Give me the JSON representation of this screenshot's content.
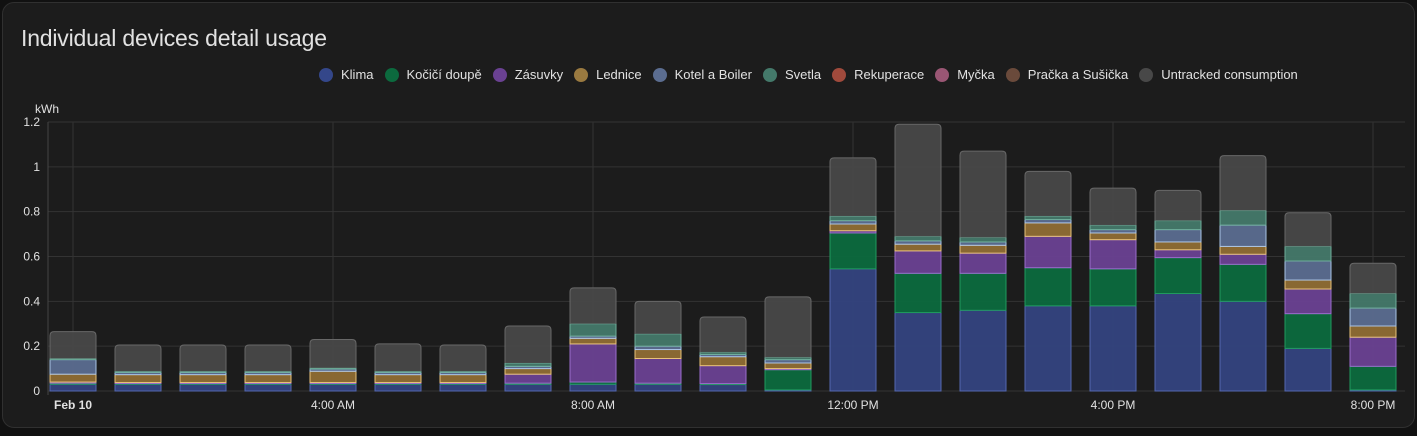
{
  "card": {
    "title": "Individual devices detail usage"
  },
  "chart_data": {
    "type": "bar",
    "stacked": true,
    "title": "Individual devices detail usage",
    "ylabel": "kWh",
    "xlabel": "",
    "ylim": [
      0,
      1.2
    ],
    "yticks": [
      "0",
      "0.2",
      "0.4",
      "0.6",
      "0.8",
      "1",
      "1.2"
    ],
    "ytick_values": [
      0,
      0.2,
      0.4,
      0.6,
      0.8,
      1.0,
      1.2
    ],
    "xtick_labels": [
      {
        "index": 0,
        "label": "Feb 10",
        "bold": true
      },
      {
        "index": 4,
        "label": "4:00 AM"
      },
      {
        "index": 8,
        "label": "8:00 AM"
      },
      {
        "index": 12,
        "label": "12:00 PM"
      },
      {
        "index": 16,
        "label": "4:00 PM"
      },
      {
        "index": 20,
        "label": "8:00 PM"
      }
    ],
    "categories": [
      "00:00",
      "01:00",
      "02:00",
      "03:00",
      "04:00",
      "05:00",
      "06:00",
      "07:00",
      "08:00",
      "09:00",
      "10:00",
      "11:00",
      "12:00",
      "13:00",
      "14:00",
      "15:00",
      "16:00",
      "17:00",
      "18:00",
      "19:00",
      "20:00"
    ],
    "legend_position": "top-center",
    "grid": true,
    "series": [
      {
        "name": "Klima",
        "color": "#34437f",
        "stroke": "#5468b0",
        "values": [
          0.03,
          0.03,
          0.03,
          0.03,
          0.03,
          0.03,
          0.03,
          0.03,
          0.03,
          0.03,
          0.03,
          0.005,
          0.545,
          0.35,
          0.36,
          0.38,
          0.38,
          0.435,
          0.4,
          0.19,
          0.005
        ]
      },
      {
        "name": "Kočičí doupě",
        "color": "#0c6a3e",
        "stroke": "#1f9a5e",
        "values": [
          0.005,
          0.005,
          0.005,
          0.005,
          0.005,
          0.005,
          0.005,
          0.005,
          0.01,
          0.005,
          0.003,
          0.09,
          0.16,
          0.175,
          0.165,
          0.17,
          0.165,
          0.16,
          0.165,
          0.155,
          0.105
        ]
      },
      {
        "name": "Zásuvky",
        "color": "#6a4192",
        "stroke": "#9a6ccc",
        "values": [
          0.005,
          0.003,
          0.003,
          0.003,
          0.003,
          0.003,
          0.003,
          0.04,
          0.17,
          0.11,
          0.08,
          0.005,
          0.01,
          0.1,
          0.09,
          0.14,
          0.13,
          0.035,
          0.045,
          0.11,
          0.13
        ]
      },
      {
        "name": "Lednice",
        "color": "#8f6d34",
        "stroke": "#e8c27a",
        "values": [
          0.035,
          0.035,
          0.035,
          0.035,
          0.05,
          0.035,
          0.035,
          0.025,
          0.025,
          0.04,
          0.04,
          0.025,
          0.03,
          0.03,
          0.035,
          0.06,
          0.03,
          0.035,
          0.035,
          0.04,
          0.05
        ]
      },
      {
        "name": "Kotel a Boiler",
        "color": "#5b6d90",
        "stroke": "#a9c3e6",
        "values": [
          0.065,
          0.01,
          0.01,
          0.01,
          0.01,
          0.01,
          0.01,
          0.01,
          0.01,
          0.015,
          0.01,
          0.015,
          0.015,
          0.015,
          0.015,
          0.015,
          0.015,
          0.055,
          0.095,
          0.085,
          0.08
        ]
      },
      {
        "name": "Svetla",
        "color": "#44796a",
        "stroke": "#6fae9b",
        "values": [
          0.005,
          0.005,
          0.005,
          0.005,
          0.005,
          0.005,
          0.005,
          0.015,
          0.055,
          0.055,
          0.01,
          0.01,
          0.02,
          0.02,
          0.02,
          0.015,
          0.02,
          0.04,
          0.065,
          0.065,
          0.065
        ]
      },
      {
        "name": "Rekuperace",
        "color": "#a04a3c",
        "stroke": "#c66a5a",
        "values": [
          0,
          0,
          0,
          0,
          0,
          0,
          0,
          0,
          0,
          0,
          0,
          0,
          0,
          0,
          0,
          0,
          0,
          0,
          0,
          0,
          0
        ]
      },
      {
        "name": "Myčka",
        "color": "#9a5674",
        "stroke": "#c07a98",
        "values": [
          0,
          0,
          0,
          0,
          0,
          0,
          0,
          0,
          0,
          0,
          0,
          0,
          0,
          0,
          0,
          0,
          0,
          0,
          0,
          0,
          0
        ]
      },
      {
        "name": "Pračka a Sušička",
        "color": "#6a4a3b",
        "stroke": "#8d6a58",
        "values": [
          0,
          0,
          0,
          0,
          0,
          0,
          0,
          0,
          0,
          0,
          0,
          0,
          0,
          0,
          0,
          0,
          0,
          0,
          0,
          0,
          0
        ]
      },
      {
        "name": "Untracked consumption",
        "color": "#484848",
        "stroke": "#686868",
        "values": [
          0.12,
          0.117,
          0.117,
          0.117,
          0.127,
          0.122,
          0.117,
          0.165,
          0.16,
          0.145,
          0.157,
          0.27,
          0.26,
          0.5,
          0.385,
          0.2,
          0.165,
          0.135,
          0.245,
          0.15,
          0.135
        ]
      }
    ]
  }
}
